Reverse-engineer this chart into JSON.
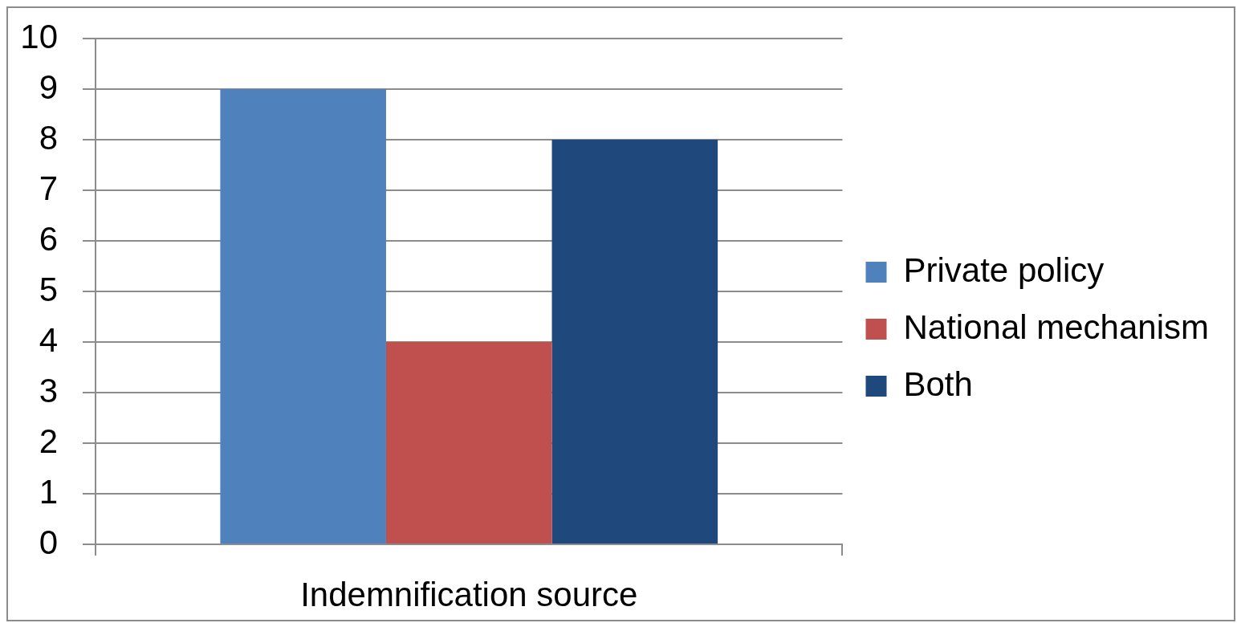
{
  "chart_data": {
    "type": "bar",
    "xlabel": "Indemnification source",
    "categories": [
      null
    ],
    "series": [
      {
        "name": "Private policy",
        "color": "#4f81bd",
        "values": [
          9
        ]
      },
      {
        "name": "National mechanism",
        "color": "#c0504d",
        "values": [
          4
        ]
      },
      {
        "name": "Both",
        "color": "#1f497d",
        "values": [
          8
        ]
      }
    ],
    "ylim": [
      0,
      10
    ],
    "yticks": [
      0,
      1,
      2,
      3,
      4,
      5,
      6,
      7,
      8,
      9,
      10
    ],
    "grid": "y",
    "legend": "right"
  }
}
